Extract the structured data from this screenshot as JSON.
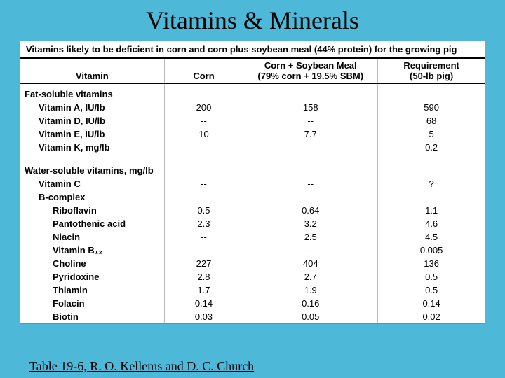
{
  "title": "Vitamins & Minerals",
  "caption": "Vitamins likely to be deficient in corn and corn plus soybean meal (44% protein) for the growing pig",
  "headers": {
    "c1": "Vitamin",
    "c2": "Corn",
    "c3a": "Corn + Soybean Meal",
    "c3b": "(79% corn + 19.5% SBM)",
    "c4a": "Requirement",
    "c4b": "(50-lb pig)"
  },
  "sections": {
    "fat": "Fat-soluble vitamins",
    "water": "Water-soluble vitamins, mg/lb",
    "bcomplex": "B-complex"
  },
  "rows": {
    "vitA": {
      "name": "Vitamin A, IU/lb",
      "corn": "200",
      "mix": "158",
      "req": "590"
    },
    "vitD": {
      "name": "Vitamin D, IU/lb",
      "corn": "--",
      "mix": "--",
      "req": "68"
    },
    "vitE": {
      "name": "Vitamin E, IU/lb",
      "corn": "10",
      "mix": "7.7",
      "req": "5"
    },
    "vitK": {
      "name": "Vitamin K, mg/lb",
      "corn": "--",
      "mix": "--",
      "req": "0.2"
    },
    "vitC": {
      "name": "Vitamin C",
      "corn": "--",
      "mix": "--",
      "req": "?"
    },
    "ribo": {
      "name": "Riboflavin",
      "corn": "0.5",
      "mix": "0.64",
      "req": "1.1"
    },
    "panto": {
      "name": "Pantothenic acid",
      "corn": "2.3",
      "mix": "3.2",
      "req": "4.6"
    },
    "niacin": {
      "name": "Niacin",
      "corn": "--",
      "mix": "2.5",
      "req": "4.5"
    },
    "b12": {
      "name": "Vitamin B₁₂",
      "corn": "--",
      "mix": "--",
      "req": "0.005"
    },
    "choline": {
      "name": "Choline",
      "corn": "227",
      "mix": "404",
      "req": "136"
    },
    "pyri": {
      "name": "Pyridoxine",
      "corn": "2.8",
      "mix": "2.7",
      "req": "0.5"
    },
    "thia": {
      "name": "Thiamin",
      "corn": "1.7",
      "mix": "1.9",
      "req": "0.5"
    },
    "fola": {
      "name": "Folacin",
      "corn": "0.14",
      "mix": "0.16",
      "req": "0.14"
    },
    "biotin": {
      "name": "Biotin",
      "corn": "0.03",
      "mix": "0.05",
      "req": "0.02"
    }
  },
  "footer": "Table 19-6, R. O. Kellems and D. C. Church",
  "colors": {
    "background": "#4db8d8",
    "table_bg": "#ffffff",
    "border": "#000000",
    "cell_border": "#bbbbbb"
  }
}
